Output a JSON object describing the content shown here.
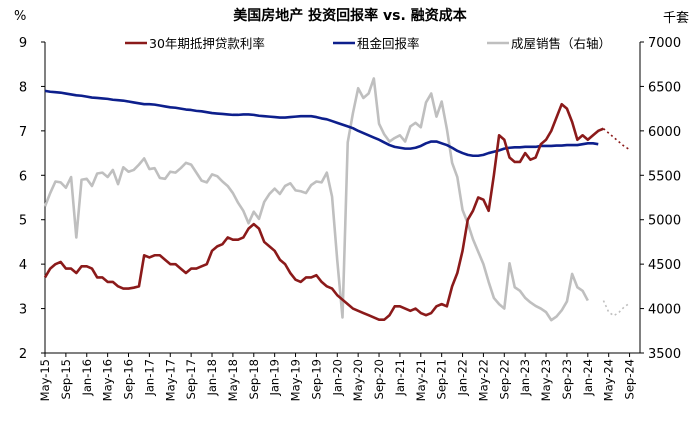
{
  "chart_data": {
    "type": "line",
    "title": "美国房地产 投资回报率 vs. 融资成本",
    "ylabel_left": "%",
    "ylabel_right": "千套",
    "ylim_left": [
      2,
      9
    ],
    "ylim_right": [
      3500,
      7000
    ],
    "yticks_left": [
      "2",
      "3",
      "4",
      "5",
      "6",
      "7",
      "8",
      "9"
    ],
    "yticks_right": [
      "3500",
      "4000",
      "4500",
      "5000",
      "5500",
      "6000",
      "6500",
      "7000"
    ],
    "xticks": [
      "May-15",
      "Sep-15",
      "Jan-16",
      "May-16",
      "Sep-16",
      "Jan-17",
      "May-17",
      "Sep-17",
      "Jan-18",
      "May-18",
      "Sep-18",
      "Jan-19",
      "May-19",
      "Sep-19",
      "Jan-20",
      "May-20",
      "Sep-20",
      "Jan-21",
      "May-21",
      "Sep-21",
      "Jan-22",
      "May-22",
      "Sep-22",
      "Jan-23",
      "May-23",
      "Sep-23",
      "Jan-24",
      "May-24",
      "Sep-24"
    ],
    "legend": [
      "30年期抵押贷款利率",
      "租金回报率",
      "成屋销售（右轴）"
    ],
    "legend_position": "top",
    "colors": {
      "mortgage": "#8B1A1A",
      "rent": "#0D1F8C",
      "sales": "#BFBFBF"
    },
    "series": [
      {
        "name": "30年期抵押贷款利率",
        "axis": "left",
        "x_start": "May-15",
        "values": [
          3.7,
          3.9,
          4.0,
          4.05,
          3.9,
          3.9,
          3.8,
          3.95,
          3.95,
          3.9,
          3.7,
          3.7,
          3.6,
          3.6,
          3.5,
          3.45,
          3.45,
          3.47,
          3.5,
          4.2,
          4.15,
          4.2,
          4.2,
          4.1,
          4.0,
          4.0,
          3.9,
          3.8,
          3.9,
          3.9,
          3.95,
          4.0,
          4.3,
          4.4,
          4.45,
          4.6,
          4.55,
          4.55,
          4.6,
          4.8,
          4.9,
          4.8,
          4.5,
          4.4,
          4.3,
          4.1,
          4.0,
          3.8,
          3.65,
          3.6,
          3.7,
          3.7,
          3.75,
          3.6,
          3.5,
          3.45,
          3.3,
          3.2,
          3.1,
          3.0,
          2.95,
          2.9,
          2.85,
          2.8,
          2.75,
          2.75,
          2.85,
          3.05,
          3.05,
          3.0,
          2.95,
          3.0,
          2.9,
          2.85,
          2.9,
          3.05,
          3.1,
          3.05,
          3.5,
          3.8,
          4.3,
          5.0,
          5.2,
          5.5,
          5.45,
          5.2,
          6.0,
          6.9,
          6.8,
          6.4,
          6.3,
          6.3,
          6.5,
          6.35,
          6.4,
          6.7,
          6.8,
          7.0,
          7.3,
          7.6,
          7.5,
          7.2,
          6.8,
          6.9,
          6.8,
          6.9,
          7.0,
          7.05
        ]
      },
      {
        "name": "租金回报率",
        "axis": "left",
        "x_start": "May-15",
        "values": [
          7.9,
          7.88,
          7.87,
          7.86,
          7.84,
          7.82,
          7.8,
          7.79,
          7.77,
          7.75,
          7.74,
          7.73,
          7.72,
          7.7,
          7.69,
          7.68,
          7.66,
          7.64,
          7.62,
          7.6,
          7.6,
          7.59,
          7.57,
          7.55,
          7.53,
          7.52,
          7.5,
          7.48,
          7.47,
          7.45,
          7.44,
          7.42,
          7.4,
          7.39,
          7.38,
          7.37,
          7.36,
          7.36,
          7.37,
          7.37,
          7.36,
          7.34,
          7.33,
          7.32,
          7.31,
          7.3,
          7.3,
          7.31,
          7.32,
          7.33,
          7.33,
          7.33,
          7.31,
          7.28,
          7.26,
          7.22,
          7.18,
          7.14,
          7.1,
          7.06,
          7.0,
          6.95,
          6.9,
          6.85,
          6.8,
          6.74,
          6.68,
          6.64,
          6.62,
          6.6,
          6.6,
          6.62,
          6.66,
          6.72,
          6.76,
          6.76,
          6.72,
          6.68,
          6.62,
          6.55,
          6.5,
          6.46,
          6.44,
          6.44,
          6.46,
          6.5,
          6.53,
          6.56,
          6.6,
          6.62,
          6.63,
          6.63,
          6.64,
          6.64,
          6.64,
          6.66,
          6.66,
          6.66,
          6.67,
          6.67,
          6.68,
          6.68,
          6.68,
          6.7,
          6.72,
          6.72,
          6.7
        ]
      },
      {
        "name": "成屋销售（右轴）",
        "axis": "right",
        "x_start": "May-15",
        "values": [
          5150,
          5300,
          5430,
          5420,
          5360,
          5480,
          4800,
          5450,
          5460,
          5380,
          5520,
          5530,
          5480,
          5560,
          5400,
          5590,
          5540,
          5560,
          5620,
          5690,
          5570,
          5580,
          5470,
          5460,
          5540,
          5530,
          5580,
          5640,
          5620,
          5530,
          5440,
          5420,
          5510,
          5490,
          5430,
          5380,
          5300,
          5190,
          5100,
          4960,
          5090,
          5010,
          5200,
          5290,
          5350,
          5290,
          5380,
          5410,
          5330,
          5320,
          5300,
          5390,
          5430,
          5420,
          5530,
          5260,
          4540,
          3900,
          5870,
          6200,
          6480,
          6370,
          6420,
          6590,
          6080,
          5960,
          5880,
          5920,
          5950,
          5880,
          6050,
          6090,
          6040,
          6320,
          6420,
          6160,
          6330,
          6020,
          5640,
          5480,
          5110,
          4960,
          4780,
          4640,
          4500,
          4300,
          4120,
          4050,
          4000,
          4510,
          4240,
          4200,
          4120,
          4070,
          4030,
          4000,
          3960,
          3870,
          3910,
          3980,
          4080,
          4390,
          4240,
          4200,
          4090
        ]
      }
    ],
    "forecast": [
      {
        "name": "30年期抵押贷款利率",
        "axis": "left",
        "from": "Jun-24",
        "values": [
          7.05,
          6.95,
          6.85,
          6.75,
          6.65,
          6.58
        ]
      },
      {
        "name": "成屋销售（右轴）",
        "axis": "right",
        "from": "Jun-24",
        "values": [
          4090,
          3960,
          3920,
          3960,
          4020,
          4060
        ]
      }
    ]
  }
}
